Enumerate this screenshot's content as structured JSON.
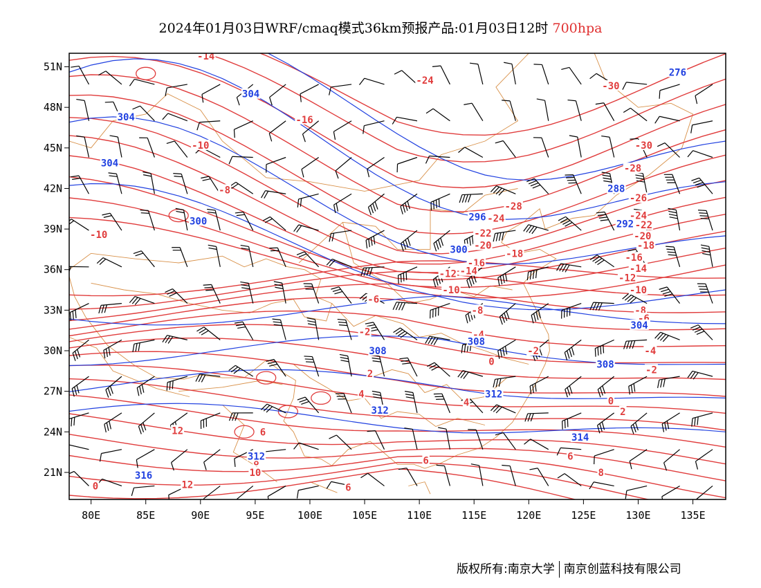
{
  "title": {
    "main": "2024年01月03日WRF/cmaq模式36km预报产品:01月03日12时",
    "level": "700hpa"
  },
  "colors": {
    "temperature_contour": "#e03c3c",
    "height_contour": "#2040e0",
    "boundary": "#d89048",
    "wind_barb": "#000000",
    "frame": "#000000"
  },
  "axes": {
    "lon_range": [
      78,
      138
    ],
    "lat_range": [
      19,
      52
    ],
    "x_ticks": [
      "80E",
      "85E",
      "90E",
      "95E",
      "100E",
      "105E",
      "110E",
      "115E",
      "120E",
      "125E",
      "130E",
      "135E"
    ],
    "x_tick_values": [
      80,
      85,
      90,
      95,
      100,
      105,
      110,
      115,
      120,
      125,
      130,
      135
    ],
    "y_ticks": [
      "21N",
      "24N",
      "27N",
      "30N",
      "33N",
      "36N",
      "39N",
      "42N",
      "45N",
      "48N",
      "51N"
    ],
    "y_tick_values": [
      21,
      24,
      27,
      30,
      33,
      36,
      39,
      42,
      45,
      48,
      51
    ]
  },
  "temperature_labels": [
    {
      "text": "-14",
      "lon": 90.5,
      "lat": 51.8
    },
    {
      "text": "-24",
      "lon": 110.5,
      "lat": 50.0
    },
    {
      "text": "-30",
      "lon": 127.5,
      "lat": 49.6
    },
    {
      "text": "-16",
      "lon": 99.5,
      "lat": 47.1
    },
    {
      "text": "-10",
      "lon": 90.0,
      "lat": 45.2
    },
    {
      "text": "-30",
      "lon": 130.5,
      "lat": 45.2
    },
    {
      "text": "-28",
      "lon": 129.5,
      "lat": 43.5
    },
    {
      "text": "-8",
      "lon": 92.2,
      "lat": 41.9
    },
    {
      "text": "-26",
      "lon": 130.0,
      "lat": 41.3
    },
    {
      "text": "-28",
      "lon": 118.6,
      "lat": 40.7
    },
    {
      "text": "-24",
      "lon": 117.0,
      "lat": 39.8
    },
    {
      "text": "-24",
      "lon": 130.0,
      "lat": 40.0
    },
    {
      "text": "-22",
      "lon": 130.5,
      "lat": 39.3
    },
    {
      "text": "-22",
      "lon": 115.8,
      "lat": 38.7
    },
    {
      "text": "-20",
      "lon": 130.4,
      "lat": 38.5
    },
    {
      "text": "-10",
      "lon": 80.7,
      "lat": 38.6
    },
    {
      "text": "-20",
      "lon": 115.8,
      "lat": 37.8
    },
    {
      "text": "-18",
      "lon": 130.7,
      "lat": 37.8
    },
    {
      "text": "-18",
      "lon": 118.7,
      "lat": 37.2
    },
    {
      "text": "-16",
      "lon": 115.2,
      "lat": 36.5
    },
    {
      "text": "-16",
      "lon": 129.6,
      "lat": 36.9
    },
    {
      "text": "-14",
      "lon": 114.5,
      "lat": 35.9
    },
    {
      "text": "-14",
      "lon": 130.0,
      "lat": 36.1
    },
    {
      "text": "-12",
      "lon": 112.6,
      "lat": 35.7
    },
    {
      "text": "-12",
      "lon": 129.0,
      "lat": 35.4
    },
    {
      "text": "-10",
      "lon": 112.9,
      "lat": 34.5
    },
    {
      "text": "-10",
      "lon": 130.0,
      "lat": 34.5
    },
    {
      "text": "-8",
      "lon": 115.3,
      "lat": 33.0
    },
    {
      "text": "-8",
      "lon": 130.2,
      "lat": 33.0
    },
    {
      "text": "-6",
      "lon": 105.8,
      "lat": 33.8
    },
    {
      "text": "-6",
      "lon": 130.5,
      "lat": 32.4
    },
    {
      "text": "-4",
      "lon": 115.4,
      "lat": 31.2
    },
    {
      "text": "-4",
      "lon": 131.1,
      "lat": 30.0
    },
    {
      "text": "-2",
      "lon": 105.0,
      "lat": 31.4
    },
    {
      "text": "-2",
      "lon": 120.4,
      "lat": 30.0
    },
    {
      "text": "-2",
      "lon": 131.2,
      "lat": 28.6
    },
    {
      "text": "0",
      "lon": 116.6,
      "lat": 29.2
    },
    {
      "text": "0",
      "lon": 127.5,
      "lat": 26.3
    },
    {
      "text": "2",
      "lon": 105.5,
      "lat": 28.3
    },
    {
      "text": "2",
      "lon": 128.6,
      "lat": 25.5
    },
    {
      "text": "4",
      "lon": 104.7,
      "lat": 26.8
    },
    {
      "text": "4",
      "lon": 114.3,
      "lat": 26.2
    },
    {
      "text": "6",
      "lon": 95.7,
      "lat": 24.0
    },
    {
      "text": "6",
      "lon": 110.6,
      "lat": 21.9
    },
    {
      "text": "6",
      "lon": 123.8,
      "lat": 22.2
    },
    {
      "text": "6",
      "lon": 103.5,
      "lat": 19.9
    },
    {
      "text": "8",
      "lon": 126.6,
      "lat": 21.0
    },
    {
      "text": "12",
      "lon": 87.9,
      "lat": 24.1
    },
    {
      "text": "12",
      "lon": 88.8,
      "lat": 20.1
    },
    {
      "text": "10",
      "lon": 95.0,
      "lat": 21.0
    },
    {
      "text": "8",
      "lon": 95.1,
      "lat": 21.8
    },
    {
      "text": "0",
      "lon": 80.4,
      "lat": 20.0
    }
  ],
  "height_labels": [
    {
      "text": "304",
      "lon": 94.6,
      "lat": 49.0
    },
    {
      "text": "304",
      "lon": 83.2,
      "lat": 47.3
    },
    {
      "text": "304",
      "lon": 81.7,
      "lat": 43.9
    },
    {
      "text": "300",
      "lon": 89.8,
      "lat": 39.6
    },
    {
      "text": "276",
      "lon": 133.6,
      "lat": 50.6
    },
    {
      "text": "288",
      "lon": 128.0,
      "lat": 42.0
    },
    {
      "text": "292",
      "lon": 128.8,
      "lat": 39.4
    },
    {
      "text": "296",
      "lon": 115.3,
      "lat": 39.9
    },
    {
      "text": "300",
      "lon": 113.6,
      "lat": 37.5
    },
    {
      "text": "304",
      "lon": 130.1,
      "lat": 31.9
    },
    {
      "text": "308",
      "lon": 115.2,
      "lat": 30.7
    },
    {
      "text": "308",
      "lon": 106.2,
      "lat": 30.0
    },
    {
      "text": "308",
      "lon": 127.0,
      "lat": 29.0
    },
    {
      "text": "312",
      "lon": 116.8,
      "lat": 26.8
    },
    {
      "text": "312",
      "lon": 106.4,
      "lat": 25.6
    },
    {
      "text": "312",
      "lon": 95.1,
      "lat": 22.2
    },
    {
      "text": "314",
      "lon": 124.7,
      "lat": 23.6
    },
    {
      "text": "316",
      "lon": 84.8,
      "lat": 20.8
    }
  ],
  "footer": {
    "copyright": "版权所有:南京大学",
    "company": "南京创蓝科技有限公司"
  }
}
